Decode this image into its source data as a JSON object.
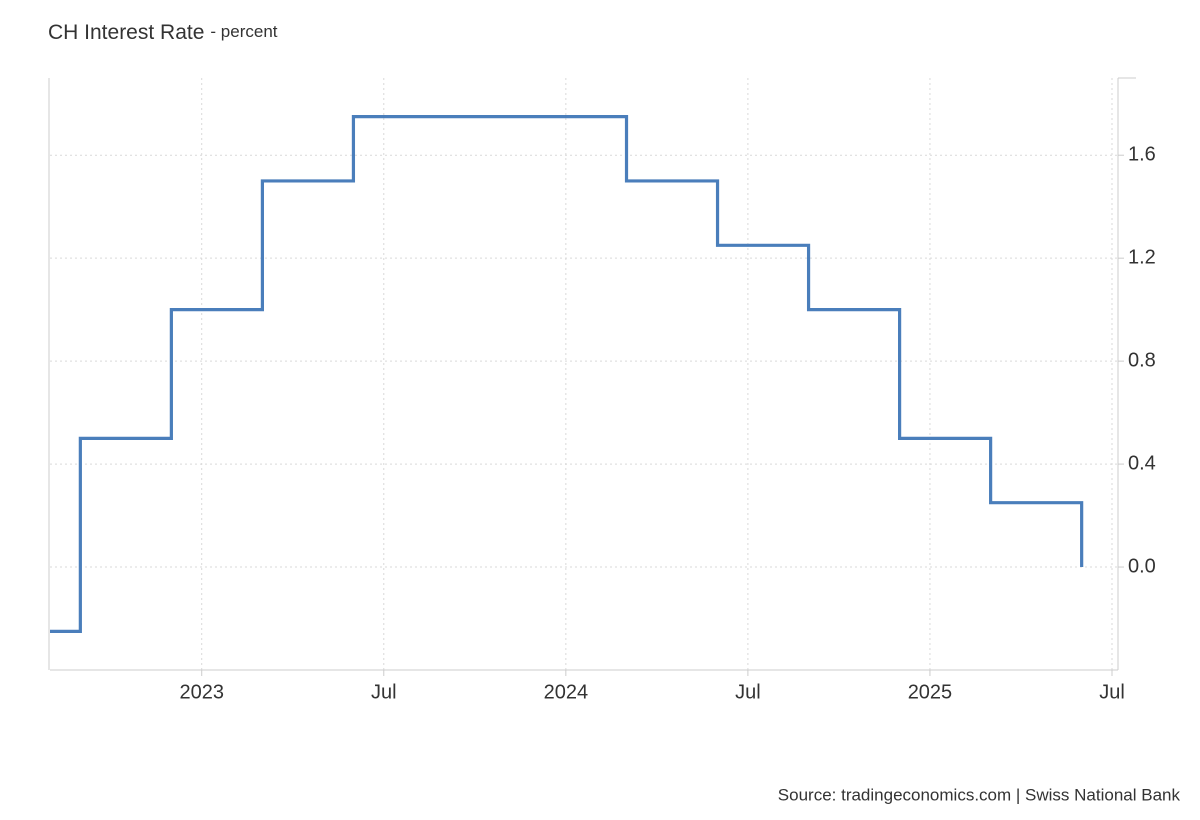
{
  "chart_data": {
    "type": "step-line",
    "title": "CH Interest Rate",
    "subtitle": "- percent",
    "source": "Source: tradingeconomics.com | Swiss National Bank",
    "x": [
      "2022-08",
      "2022-09",
      "2022-12",
      "2023-03",
      "2023-06",
      "2024-03",
      "2024-06",
      "2024-09",
      "2024-12",
      "2025-03",
      "2025-06"
    ],
    "values": [
      -0.25,
      0.5,
      1,
      1.5,
      1.75,
      1.5,
      1.25,
      1,
      0.5,
      0.25,
      0
    ],
    "color": "#4a7ebb",
    "xlim": [
      "2022-08",
      "2025-07"
    ],
    "xticks": [
      {
        "value": "2023-01",
        "label": "2023"
      },
      {
        "value": "2023-07",
        "label": "Jul"
      },
      {
        "value": "2024-01",
        "label": "2024"
      },
      {
        "value": "2024-07",
        "label": "Jul"
      },
      {
        "value": "2025-01",
        "label": "2025"
      },
      {
        "value": "2025-07",
        "label": "Jul"
      }
    ],
    "ylim": [
      -0.4,
      1.9
    ],
    "yticks": [
      {
        "value": 0,
        "label": "0.0"
      },
      0.4,
      0.8,
      1.2,
      1.6
    ],
    "y_axis_side": "right",
    "grid": true
  }
}
